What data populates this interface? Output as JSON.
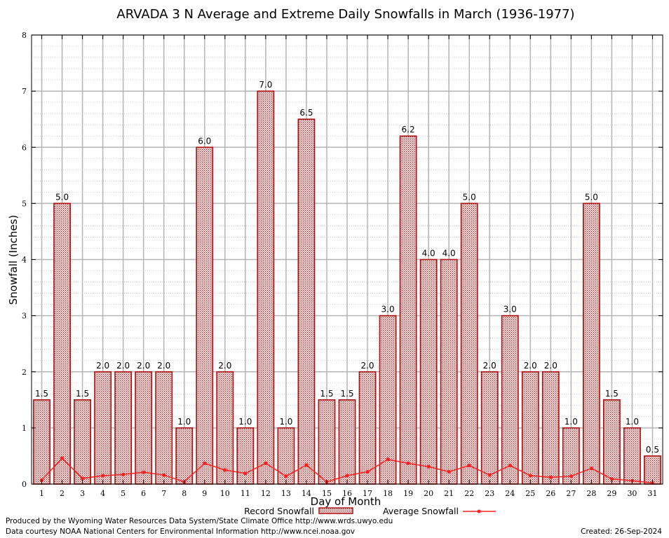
{
  "chart_data": {
    "type": "bar",
    "title": "ARVADA 3 N Average and Extreme Daily Snowfalls in March (1936-1977)",
    "xlabel": "Day of Month",
    "ylabel": "Snowfall (Inches)",
    "ylim": [
      0,
      8
    ],
    "yticks": [
      "0",
      "1",
      "2",
      "3",
      "4",
      "5",
      "6",
      "7",
      "8"
    ],
    "grid": true,
    "categories": [
      "1",
      "2",
      "3",
      "4",
      "5",
      "6",
      "7",
      "8",
      "9",
      "10",
      "11",
      "12",
      "13",
      "14",
      "15",
      "16",
      "17",
      "18",
      "19",
      "20",
      "21",
      "22",
      "23",
      "24",
      "25",
      "26",
      "27",
      "28",
      "29",
      "30",
      "31"
    ],
    "series": [
      {
        "name": "Record Snowfall",
        "kind": "bar",
        "color": "#b01010",
        "values": [
          1.5,
          5.0,
          1.5,
          2.0,
          2.0,
          2.0,
          2.0,
          1.0,
          6.0,
          2.0,
          1.0,
          7.0,
          1.0,
          6.5,
          1.5,
          1.5,
          2.0,
          3.0,
          6.2,
          4.0,
          4.0,
          5.0,
          2.0,
          3.0,
          2.0,
          2.0,
          1.0,
          5.0,
          1.5,
          1.0,
          0.5
        ],
        "labels": [
          "1.5",
          "5.0",
          "1.5",
          "2.0",
          "2.0",
          "2.0",
          "2.0",
          "1.0",
          "6.0",
          "2.0",
          "1.0",
          "7.0",
          "1.0",
          "6.5",
          "1.5",
          "1.5",
          "2.0",
          "3.0",
          "6.2",
          "4.0",
          "4.0",
          "5.0",
          "2.0",
          "3.0",
          "2.0",
          "2.0",
          "1.0",
          "5.0",
          "1.5",
          "1.0",
          "0.5"
        ]
      },
      {
        "name": "Average Snowfall",
        "kind": "line",
        "color": "#ff2020",
        "values": [
          0.07,
          0.46,
          0.1,
          0.15,
          0.17,
          0.21,
          0.16,
          0.04,
          0.37,
          0.25,
          0.19,
          0.37,
          0.14,
          0.34,
          0.04,
          0.15,
          0.22,
          0.44,
          0.37,
          0.31,
          0.22,
          0.33,
          0.16,
          0.33,
          0.15,
          0.12,
          0.14,
          0.28,
          0.09,
          0.06,
          0.02
        ]
      }
    ],
    "legend_position": "bottom-center"
  },
  "footer": {
    "produced_by": "Produced by the Wyoming Water Resources Data System/State Climate Office http://www.wrds.uwyo.edu",
    "courtesy": "Data courtesy NOAA National Centers for Environmental Information http://www.ncei.noaa.gov",
    "created": "Created:  26-Sep-2024"
  }
}
